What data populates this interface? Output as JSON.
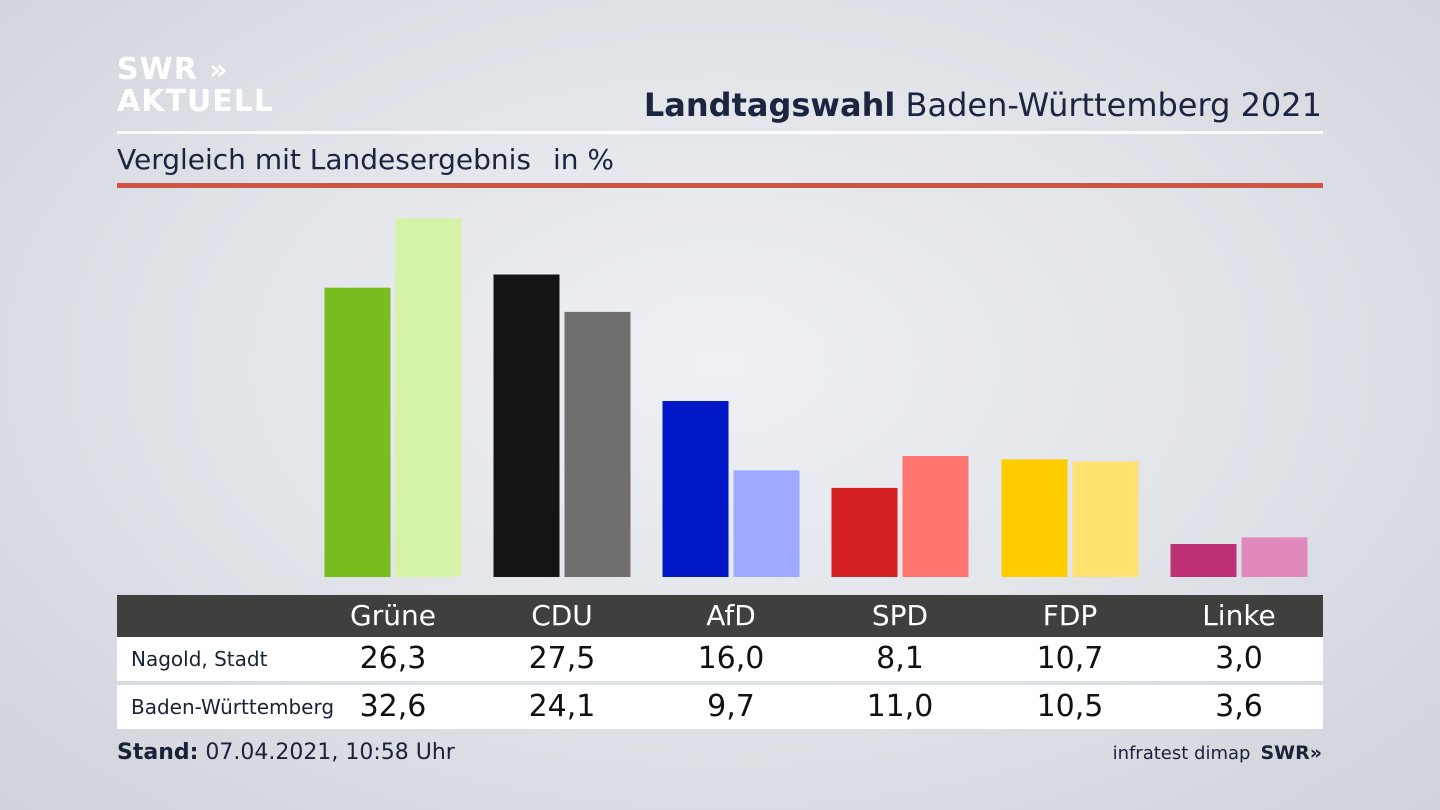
{
  "logo": {
    "line1": "SWR",
    "arrows": "»",
    "line2": "AKTUELL"
  },
  "title": {
    "bold": "Landtagswahl",
    "rest": "Baden-Württemberg 2021"
  },
  "subtitle": {
    "text": "Vergleich mit Landesergebnis",
    "unit": "in %"
  },
  "chart_data": {
    "type": "bar",
    "categories": [
      "Grüne",
      "CDU",
      "AfD",
      "SPD",
      "FDP",
      "Linke"
    ],
    "series": [
      {
        "name": "Nagold, Stadt",
        "values": [
          26.3,
          27.5,
          16.0,
          8.1,
          10.7,
          3.0
        ]
      },
      {
        "name": "Baden-Württemberg",
        "values": [
          32.6,
          24.1,
          9.7,
          11.0,
          10.5,
          3.6
        ]
      }
    ],
    "colors": {
      "primary": [
        "#78bc1e",
        "#141414",
        "#0018c8",
        "#d42020",
        "#ffcc00",
        "#bd3075"
      ],
      "secondary": [
        "#d5f3a8",
        "#706f6d",
        "#9eaaff",
        "#ff7670",
        "#ffe26f",
        "#e089ba"
      ]
    },
    "ylim": [
      0,
      33
    ]
  },
  "table": {
    "rows": [
      {
        "label": "Nagold, Stadt",
        "values": [
          "26,3",
          "27,5",
          "16,0",
          "8,1",
          "10,7",
          "3,0"
        ]
      },
      {
        "label": "Baden-Württemberg",
        "values": [
          "32,6",
          "24,1",
          "9,7",
          "11,0",
          "10,5",
          "3,6"
        ]
      }
    ]
  },
  "footer": {
    "stand_label": "Stand:",
    "stand_value": "07.04.2021, 10:58 Uhr",
    "source": "infratest dimap",
    "brand": "SWR»"
  }
}
